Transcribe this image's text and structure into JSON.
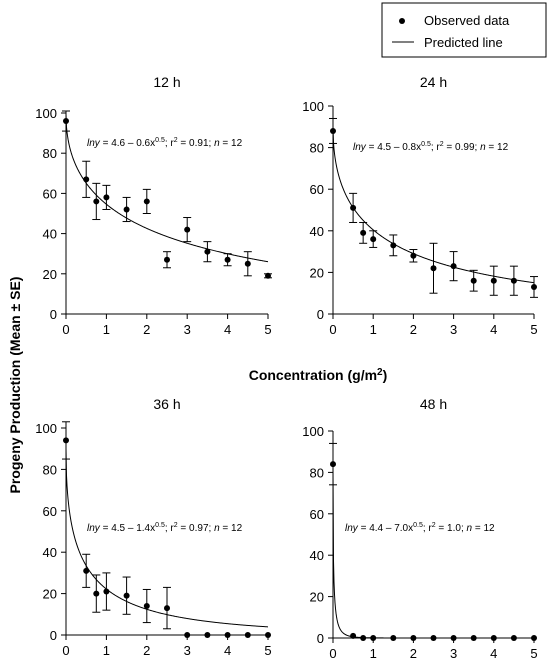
{
  "legend": {
    "observed": "Observed data",
    "predicted": "Predicted line",
    "placement": "top-right"
  },
  "axes": {
    "xlabel": "Concentration (g/m",
    "xlabel_sup": "2",
    "xlabel_end": ")",
    "ylabel": "Progeny Production (Mean ± SE)"
  },
  "chart_data": [
    {
      "type": "scatter",
      "title": "12 h",
      "xlim": [
        0,
        5
      ],
      "ylim": [
        0,
        100
      ],
      "xticks": [
        0,
        1,
        2,
        3,
        4,
        5
      ],
      "yticks": [
        0,
        20,
        40,
        60,
        80,
        100
      ],
      "eq": {
        "a": "lny",
        "b": " = 4.6 – 0.6x",
        "c": "0.5",
        "d": "; r",
        "e": "2",
        "f": " = 0.91; ",
        "g": "n",
        "h": " = 12"
      },
      "fit": {
        "a": 4.6,
        "b": 0.6
      },
      "x": [
        0,
        0.5,
        0.75,
        1,
        1.5,
        2,
        2.5,
        3,
        3.5,
        4,
        4.5,
        5
      ],
      "y": [
        96,
        67,
        56,
        58,
        52,
        56,
        27,
        42,
        31,
        27,
        25,
        19
      ],
      "se": [
        5,
        9,
        9,
        6,
        6,
        6,
        4,
        6,
        5,
        3,
        6,
        1
      ]
    },
    {
      "type": "scatter",
      "title": "24 h",
      "xlim": [
        0,
        5
      ],
      "ylim": [
        0,
        100
      ],
      "xticks": [
        0,
        1,
        2,
        3,
        4,
        5
      ],
      "yticks": [
        0,
        20,
        40,
        60,
        80,
        100
      ],
      "eq": {
        "a": "lny",
        "b": " = 4.5 – 0.8x",
        "c": "0.5",
        "d": "; r",
        "e": "2",
        "f": " = 0.99; ",
        "g": "n",
        "h": " = 12"
      },
      "fit": {
        "a": 4.5,
        "b": 0.8
      },
      "x": [
        0,
        0.5,
        0.75,
        1,
        1.5,
        2,
        2.5,
        3,
        3.5,
        4,
        4.5,
        5
      ],
      "y": [
        88,
        51,
        39,
        36,
        33,
        28,
        22,
        23,
        16,
        16,
        16,
        13
      ],
      "se": [
        6,
        7,
        5,
        4,
        5,
        3,
        12,
        7,
        5,
        7,
        7,
        5
      ]
    },
    {
      "type": "scatter",
      "title": "36 h",
      "xlim": [
        0,
        5
      ],
      "ylim": [
        0,
        100
      ],
      "xticks": [
        0,
        1,
        2,
        3,
        4,
        5
      ],
      "yticks": [
        0,
        20,
        40,
        60,
        80,
        100
      ],
      "eq": {
        "a": "lny",
        "b": " = 4.5 – 1.4x",
        "c": "0.5",
        "d": "; r",
        "e": "2",
        "f": " = 0.97; ",
        "g": "n",
        "h": " = 12"
      },
      "fit": {
        "a": 4.5,
        "b": 1.4
      },
      "x": [
        0,
        0.5,
        0.75,
        1,
        1.5,
        2,
        2.5,
        3,
        3.5,
        4,
        4.5,
        5
      ],
      "y": [
        94,
        31,
        20,
        21,
        19,
        14,
        13,
        0,
        0,
        0,
        0,
        0
      ],
      "se": [
        9,
        8,
        9,
        9,
        9,
        8,
        10,
        0,
        0,
        0,
        0,
        0
      ]
    },
    {
      "type": "scatter",
      "title": "48 h",
      "xlim": [
        0,
        5
      ],
      "ylim": [
        0,
        100
      ],
      "xticks": [
        0,
        1,
        2,
        3,
        4,
        5
      ],
      "yticks": [
        0,
        20,
        40,
        60,
        80,
        100
      ],
      "eq": {
        "a": "lny",
        "b": " = 4.4 – 7.0x",
        "c": "0.5",
        "d": "; r",
        "e": "2",
        "f": " = 1.0; ",
        "g": "n",
        "h": " = 12"
      },
      "fit": {
        "a": 4.4,
        "b": 7.0
      },
      "x": [
        0,
        0.5,
        0.75,
        1,
        1.5,
        2,
        2.5,
        3,
        3.5,
        4,
        4.5,
        5
      ],
      "y": [
        84,
        1,
        0,
        0,
        0,
        0,
        0,
        0,
        0,
        0,
        0,
        0
      ],
      "se": [
        10,
        0,
        0,
        0,
        0,
        0,
        0,
        0,
        0,
        0,
        0,
        0
      ]
    }
  ]
}
